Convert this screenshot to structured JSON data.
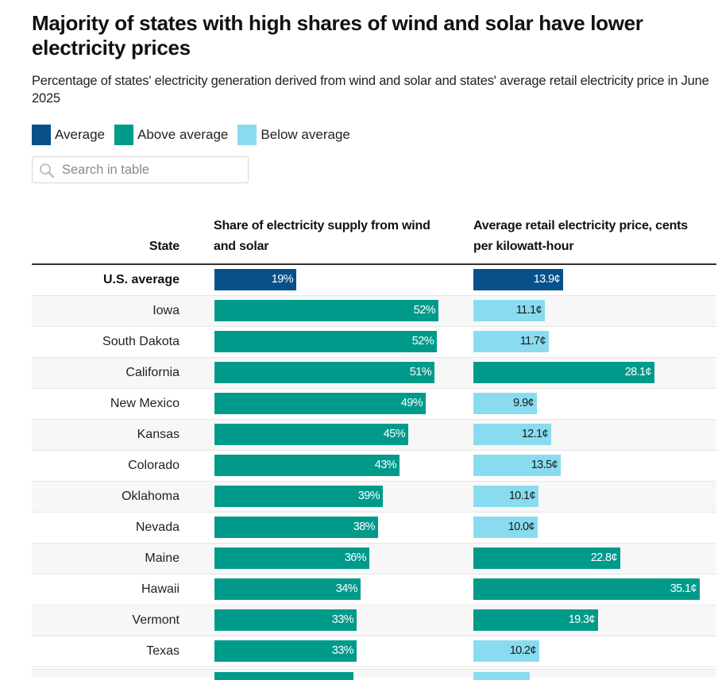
{
  "header": {
    "title": "Majority of states with high shares of wind and solar have lower electricity prices",
    "subtitle": "Percentage of states' electricity generation derived from wind and solar and states' average retail electricity price in June 2025"
  },
  "legend": [
    {
      "label": "Average",
      "key": "average",
      "color": "#07508a"
    },
    {
      "label": "Above average",
      "key": "above",
      "color": "#009a8b"
    },
    {
      "label": "Below average",
      "key": "below",
      "color": "#89dcef"
    }
  ],
  "search": {
    "placeholder": "Search in table",
    "value": "",
    "icon": "search-icon"
  },
  "table": {
    "columns": {
      "state": "State",
      "share": "Share of electricity supply from wind and solar",
      "price": "Average retail electricity price, cents per kilowatt-hour"
    }
  },
  "chart_data": {
    "type": "table",
    "title": "Majority of states with high shares of wind and solar have lower electricity prices",
    "subtitle": "Percentage of states' electricity generation derived from wind and solar and states' average retail electricity price in June 2025",
    "share_unit": "%",
    "price_unit": "¢",
    "share_max": 52,
    "price_max": 35.1,
    "rows": [
      {
        "state": "U.S. average",
        "share": 19,
        "share_label": "19%",
        "share_class": "average",
        "price": 13.9,
        "price_label": "13.9¢",
        "price_class": "average"
      },
      {
        "state": "Iowa",
        "share": 52,
        "share_label": "52%",
        "share_class": "above",
        "price": 11.1,
        "price_label": "11.1¢",
        "price_class": "below"
      },
      {
        "state": "South Dakota",
        "share": 51.6,
        "share_label": "52%",
        "share_class": "above",
        "price": 11.7,
        "price_label": "11.7¢",
        "price_class": "below"
      },
      {
        "state": "California",
        "share": 51,
        "share_label": "51%",
        "share_class": "above",
        "price": 28.1,
        "price_label": "28.1¢",
        "price_class": "above"
      },
      {
        "state": "New Mexico",
        "share": 49,
        "share_label": "49%",
        "share_class": "above",
        "price": 9.9,
        "price_label": "9.9¢",
        "price_class": "below"
      },
      {
        "state": "Kansas",
        "share": 45,
        "share_label": "45%",
        "share_class": "above",
        "price": 12.1,
        "price_label": "12.1¢",
        "price_class": "below"
      },
      {
        "state": "Colorado",
        "share": 43,
        "share_label": "43%",
        "share_class": "above",
        "price": 13.5,
        "price_label": "13.5¢",
        "price_class": "below"
      },
      {
        "state": "Oklahoma",
        "share": 39,
        "share_label": "39%",
        "share_class": "above",
        "price": 10.1,
        "price_label": "10.1¢",
        "price_class": "below"
      },
      {
        "state": "Nevada",
        "share": 38,
        "share_label": "38%",
        "share_class": "above",
        "price": 10.0,
        "price_label": "10.0¢",
        "price_class": "below"
      },
      {
        "state": "Maine",
        "share": 36,
        "share_label": "36%",
        "share_class": "above",
        "price": 22.8,
        "price_label": "22.8¢",
        "price_class": "above"
      },
      {
        "state": "Hawaii",
        "share": 34,
        "share_label": "34%",
        "share_class": "above",
        "price": 35.1,
        "price_label": "35.1¢",
        "price_class": "above"
      },
      {
        "state": "Vermont",
        "share": 33,
        "share_label": "33%",
        "share_class": "above",
        "price": 19.3,
        "price_label": "19.3¢",
        "price_class": "above"
      },
      {
        "state": "Texas",
        "share": 33,
        "share_label": "33%",
        "share_class": "above",
        "price": 10.2,
        "price_label": "10.2¢",
        "price_class": "below"
      }
    ]
  }
}
